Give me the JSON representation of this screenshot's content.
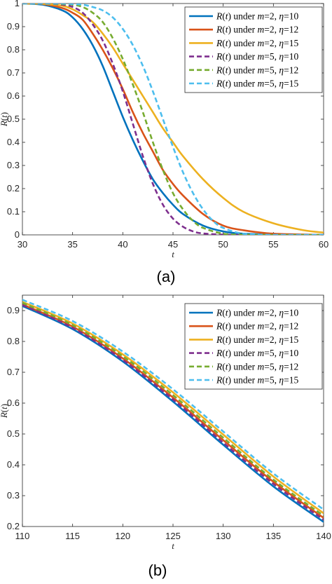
{
  "captions": [
    "(a)",
    "(b)"
  ],
  "series_colors": {
    "blue": "#0072BD",
    "orange": "#D95319",
    "yellow": "#EDB120",
    "purple": "#7E2F8E",
    "green": "#77AC30",
    "cyan": "#4DBEEE"
  },
  "chart_data": [
    {
      "type": "line",
      "caption": "(a)",
      "xlabel": "t",
      "ylabel": "R(t)",
      "xlim": [
        30,
        60
      ],
      "ylim": [
        0,
        1
      ],
      "xticks": [
        30,
        35,
        40,
        45,
        50,
        55,
        60
      ],
      "yticks": [
        0,
        0.1,
        0.2,
        0.3,
        0.4,
        0.5,
        0.6,
        0.7,
        0.8,
        0.9,
        1
      ],
      "ytick_labels": [
        "0",
        "0.1",
        "0.2",
        "0.3",
        "0.4",
        "0.5",
        "0.6",
        "0.7",
        "0.8",
        "0.9",
        "1"
      ],
      "grid": false,
      "legend_position": "top-right",
      "series": [
        {
          "name": "R(t) under m=2, η=10",
          "color": "blue",
          "dash": "solid",
          "x": [
            30,
            32,
            34,
            35,
            36,
            37,
            38,
            39,
            40,
            41,
            42,
            43,
            44,
            45,
            46,
            48,
            50,
            52,
            55,
            60
          ],
          "y": [
            1.0,
            0.995,
            0.97,
            0.94,
            0.89,
            0.82,
            0.73,
            0.62,
            0.51,
            0.41,
            0.32,
            0.24,
            0.18,
            0.13,
            0.09,
            0.04,
            0.015,
            0.005,
            0.001,
            0.0
          ]
        },
        {
          "name": "R(t) under m=2, η=12",
          "color": "orange",
          "dash": "solid",
          "x": [
            30,
            32,
            34,
            35,
            36,
            37,
            38,
            39,
            40,
            41,
            42,
            43,
            44,
            45,
            46,
            48,
            50,
            52,
            55,
            60
          ],
          "y": [
            1.0,
            0.998,
            0.98,
            0.96,
            0.93,
            0.87,
            0.8,
            0.72,
            0.63,
            0.53,
            0.44,
            0.36,
            0.28,
            0.22,
            0.17,
            0.09,
            0.04,
            0.02,
            0.005,
            0.0
          ]
        },
        {
          "name": "R(t) under m=2, η=15",
          "color": "yellow",
          "dash": "solid",
          "x": [
            30,
            32,
            34,
            35,
            36,
            37,
            38,
            39,
            40,
            41,
            42,
            43,
            44,
            45,
            46,
            48,
            50,
            52,
            55,
            58,
            60
          ],
          "y": [
            1.0,
            0.999,
            0.99,
            0.975,
            0.95,
            0.92,
            0.87,
            0.81,
            0.74,
            0.67,
            0.6,
            0.53,
            0.46,
            0.4,
            0.34,
            0.24,
            0.16,
            0.1,
            0.05,
            0.02,
            0.01
          ]
        },
        {
          "name": "R(t) under m=5, η=10",
          "color": "purple",
          "dash": "dashed",
          "x": [
            30,
            32,
            34,
            35,
            36,
            37,
            38,
            39,
            40,
            41,
            42,
            43,
            44,
            45,
            46,
            47,
            48,
            50,
            52,
            55,
            60
          ],
          "y": [
            1.0,
            1.0,
            0.995,
            0.985,
            0.96,
            0.91,
            0.84,
            0.74,
            0.62,
            0.48,
            0.34,
            0.22,
            0.13,
            0.07,
            0.035,
            0.015,
            0.006,
            0.001,
            0.0,
            0.0,
            0.0
          ]
        },
        {
          "name": "R(t) under m=5, η=12",
          "color": "green",
          "dash": "dashed",
          "x": [
            30,
            32,
            34,
            35,
            36,
            37,
            38,
            39,
            40,
            41,
            42,
            43,
            44,
            45,
            46,
            47,
            48,
            50,
            52,
            55,
            60
          ],
          "y": [
            1.0,
            1.0,
            0.998,
            0.995,
            0.985,
            0.96,
            0.92,
            0.85,
            0.76,
            0.65,
            0.53,
            0.4,
            0.28,
            0.18,
            0.11,
            0.06,
            0.03,
            0.005,
            0.001,
            0.0,
            0.0
          ]
        },
        {
          "name": "R(t) under m=5, η=15",
          "color": "cyan",
          "dash": "dashed",
          "x": [
            30,
            32,
            34,
            35,
            36,
            37,
            38,
            39,
            40,
            41,
            42,
            43,
            44,
            45,
            46,
            47,
            48,
            49,
            50,
            52,
            55,
            60
          ],
          "y": [
            1.0,
            1.0,
            1.0,
            0.998,
            0.995,
            0.985,
            0.97,
            0.94,
            0.89,
            0.82,
            0.73,
            0.62,
            0.5,
            0.38,
            0.27,
            0.18,
            0.11,
            0.06,
            0.03,
            0.005,
            0.0,
            0.0
          ]
        }
      ]
    },
    {
      "type": "line",
      "caption": "(b)",
      "xlabel": "t",
      "ylabel": "R(t)",
      "xlim": [
        110,
        140
      ],
      "ylim": [
        0.2,
        0.95
      ],
      "xticks": [
        110,
        115,
        120,
        125,
        130,
        135,
        140
      ],
      "yticks": [
        0.2,
        0.3,
        0.4,
        0.5,
        0.6,
        0.7,
        0.8,
        0.9
      ],
      "ytick_labels": [
        "0.2",
        "0.3",
        "0.4",
        "0.5",
        "0.6",
        "0.7",
        "0.8",
        "0.9"
      ],
      "grid": false,
      "legend_position": "top-right",
      "series": [
        {
          "name": "R(t) under m=2, η=10",
          "color": "blue",
          "dash": "solid",
          "x": [
            110,
            115,
            120,
            125,
            130,
            135,
            140
          ],
          "y": [
            0.915,
            0.84,
            0.735,
            0.605,
            0.465,
            0.33,
            0.215
          ]
        },
        {
          "name": "R(t) under m=2, η=12",
          "color": "orange",
          "dash": "solid",
          "x": [
            110,
            115,
            120,
            125,
            130,
            135,
            140
          ],
          "y": [
            0.92,
            0.848,
            0.745,
            0.618,
            0.48,
            0.345,
            0.228
          ]
        },
        {
          "name": "R(t) under m=2, η=15",
          "color": "yellow",
          "dash": "solid",
          "x": [
            110,
            115,
            120,
            125,
            130,
            135,
            140
          ],
          "y": [
            0.928,
            0.858,
            0.758,
            0.635,
            0.498,
            0.362,
            0.243
          ]
        },
        {
          "name": "R(t) under m=5, η=10",
          "color": "purple",
          "dash": "dashed",
          "x": [
            110,
            115,
            120,
            125,
            130,
            135,
            140
          ],
          "y": [
            0.918,
            0.844,
            0.74,
            0.612,
            0.472,
            0.338,
            0.222
          ]
        },
        {
          "name": "R(t) under m=5, η=12",
          "color": "green",
          "dash": "dashed",
          "x": [
            110,
            115,
            120,
            125,
            130,
            135,
            140
          ],
          "y": [
            0.925,
            0.853,
            0.752,
            0.626,
            0.488,
            0.352,
            0.235
          ]
        },
        {
          "name": "R(t) under m=5, η=15",
          "color": "cyan",
          "dash": "dashed",
          "x": [
            110,
            115,
            120,
            125,
            130,
            135,
            140
          ],
          "y": [
            0.935,
            0.866,
            0.767,
            0.645,
            0.508,
            0.372,
            0.255
          ]
        }
      ]
    }
  ]
}
